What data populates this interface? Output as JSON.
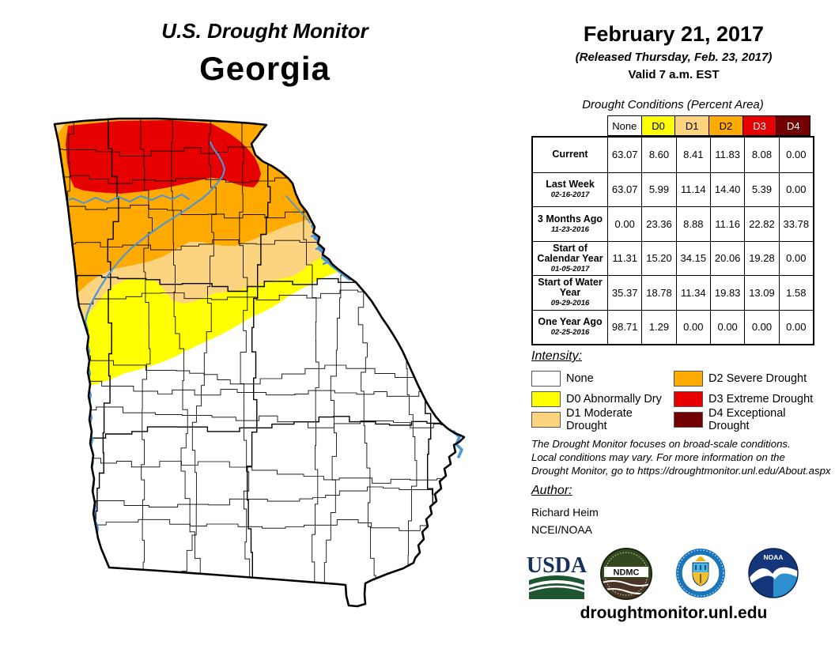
{
  "title": {
    "kicker": "U.S. Drought Monitor",
    "state": "Georgia"
  },
  "date_block": {
    "date": "February 21, 2017",
    "released": "(Released Thursday, Feb. 23, 2017)",
    "valid": "Valid 7 a.m. EST"
  },
  "table": {
    "caption": "Drought Conditions (Percent Area)",
    "columns": [
      "None",
      "D0",
      "D1",
      "D2",
      "D3",
      "D4"
    ],
    "rows": [
      {
        "label": "Current",
        "date": "",
        "values": [
          "63.07",
          "8.60",
          "8.41",
          "11.83",
          "8.08",
          "0.00"
        ]
      },
      {
        "label": "Last Week",
        "date": "02-16-2017",
        "values": [
          "63.07",
          "5.99",
          "11.14",
          "14.40",
          "5.39",
          "0.00"
        ]
      },
      {
        "label": "3 Months Ago",
        "date": "11-23-2016",
        "values": [
          "0.00",
          "23.36",
          "8.88",
          "11.16",
          "22.82",
          "33.78"
        ]
      },
      {
        "label": "Start of Calendar Year",
        "date": "01-05-2017",
        "values": [
          "11.31",
          "15.20",
          "34.15",
          "20.06",
          "19.28",
          "0.00"
        ]
      },
      {
        "label": "Start of Water Year",
        "date": "09-29-2016",
        "values": [
          "35.37",
          "18.78",
          "11.34",
          "19.83",
          "13.09",
          "1.58"
        ]
      },
      {
        "label": "One Year Ago",
        "date": "02-25-2016",
        "values": [
          "98.71",
          "1.29",
          "0.00",
          "0.00",
          "0.00",
          "0.00"
        ]
      }
    ]
  },
  "legend": {
    "heading": "Intensity:",
    "items": [
      {
        "label": "None",
        "color": "#FFFFFF"
      },
      {
        "label": "D0 Abnormally Dry",
        "color": "#FFFF00"
      },
      {
        "label": "D1 Moderate Drought",
        "color": "#FCD37F"
      },
      {
        "label": "D2 Severe Drought",
        "color": "#FFAA00"
      },
      {
        "label": "D3 Extreme Drought",
        "color": "#E60000"
      },
      {
        "label": "D4 Exceptional Drought",
        "color": "#730000"
      }
    ]
  },
  "notes": {
    "lines": [
      "The Drought Monitor focuses on broad-scale conditions.",
      "Local conditions may vary. For more information on the",
      "Drought Monitor, go to https://droughtmonitor.unl.edu/About.aspx"
    ]
  },
  "author": {
    "heading": "Author:",
    "name": "Richard Heim",
    "org": "NCEI/NOAA"
  },
  "logos": {
    "usda": "USDA",
    "ndmc": "NDMC",
    "noaa": "NOAA"
  },
  "footer": {
    "url": "droughtmonitor.unl.edu"
  },
  "map": {
    "region": "Georgia",
    "palette": {
      "none": "#FFFFFF",
      "d0": "#FFFF00",
      "d1": "#FCD37F",
      "d2": "#FFAA00",
      "d3": "#E60000",
      "d4": "#730000",
      "water": "#4A96DB",
      "border": "#000000"
    }
  }
}
